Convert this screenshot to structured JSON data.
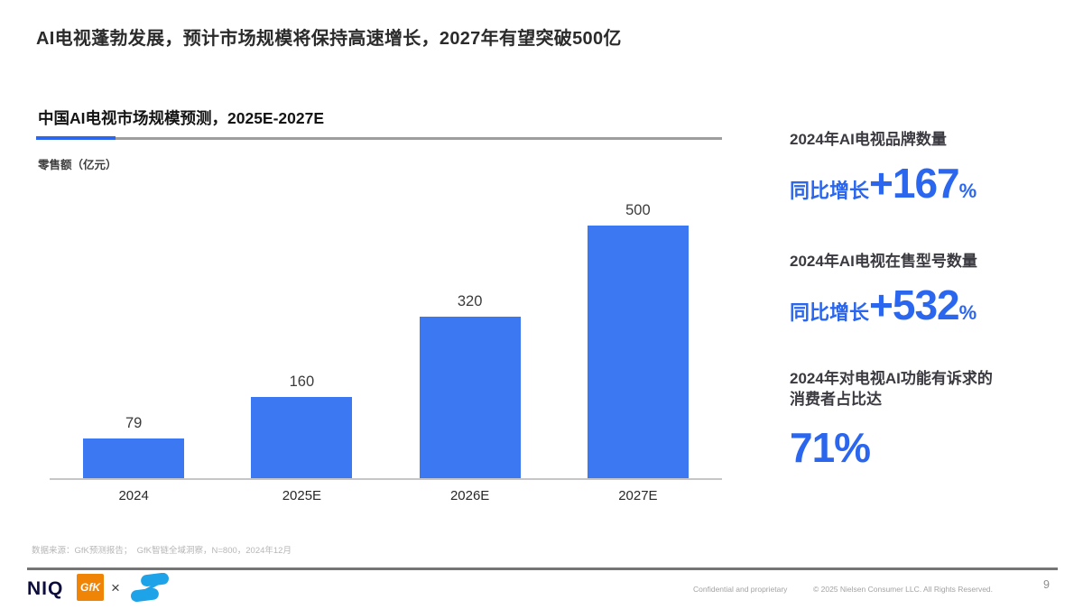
{
  "title": "AI电视蓬勃发展，预计市场规模将保持高速增长，2027年有望突破500亿",
  "chart": {
    "section_title": "中国AI电视市场规模预测，2025E-2027E",
    "unit_label": "零售额（亿元）"
  },
  "chart_data": {
    "type": "bar",
    "title": "中国AI电视市场规模预测，2025E-2027E",
    "xlabel": "",
    "ylabel": "零售额（亿元）",
    "categories": [
      "2024",
      "2025E",
      "2026E",
      "2027E"
    ],
    "values": [
      79,
      160,
      320,
      500
    ],
    "ylim": [
      0,
      500
    ],
    "grid": false,
    "legend_position": "none",
    "bar_color": "#3b78f2",
    "value_labels": [
      "79",
      "160",
      "320",
      "500"
    ]
  },
  "stats": [
    {
      "heading": "2024年AI电视品牌数量",
      "prefix": "同比增长",
      "value": "+167",
      "suffix": "%"
    },
    {
      "heading": "2024年AI电视在售型号数量",
      "prefix": "同比增长",
      "value": "+532",
      "suffix": "%"
    },
    {
      "heading": "2024年对电视AI功能有诉求的\n消费者占比达",
      "prefix": "",
      "value": "71%",
      "suffix": ""
    }
  ],
  "footer": {
    "source": "数据来源：GfK预测报告；  GfK智链全域洞察，N=800，2024年12月",
    "brand_niq": "NIQ",
    "brand_gfk": "GfK",
    "brand_separator": "×",
    "confidential": "Confidential and proprietary",
    "copyright": "© 2025 Nielsen Consumer LLC. All Rights Reserved.",
    "page_number": "9"
  },
  "colors": {
    "accent_blue": "#2b66ee",
    "bar_blue": "#3b78f2",
    "niq_navy": "#0c0c3e",
    "gfk_orange": "#f08406",
    "zlogo_blue": "#1fa3e8"
  }
}
